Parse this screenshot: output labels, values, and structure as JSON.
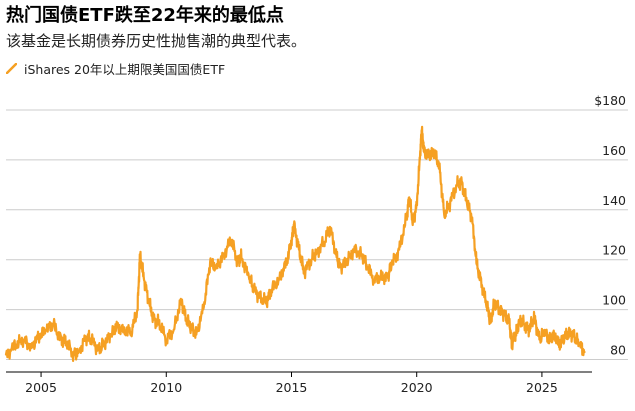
{
  "title": "热门国债ETF跌至22年来的最低点",
  "subtitle": "该基金是长期债券历史性抛售潮的典型代表。",
  "legend": {
    "label": "iShares 20年以上期限美国国债ETF"
  },
  "colors": {
    "line": "#f5a023",
    "grid": "#cccccc",
    "axis": "#000000",
    "text": "#222222"
  },
  "chart_data": {
    "type": "line",
    "title": "热门国债ETF跌至22年来的最低点",
    "subtitle": "该基金是长期债券历史性抛售潮的典型代表。",
    "series": [
      {
        "name": "iShares 20年以上期限美国国债ETF",
        "x": [
          2003.6,
          2004.0,
          2004.3,
          2004.6,
          2004.9,
          2005.2,
          2005.5,
          2005.8,
          2006.0,
          2006.3,
          2006.5,
          2006.8,
          2007.0,
          2007.3,
          2007.5,
          2007.8,
          2008.0,
          2008.3,
          2008.6,
          2008.85,
          2008.95,
          2009.1,
          2009.3,
          2009.5,
          2009.7,
          2010.0,
          2010.3,
          2010.6,
          2010.8,
          2011.0,
          2011.2,
          2011.5,
          2011.75,
          2012.0,
          2012.3,
          2012.6,
          2012.85,
          2013.0,
          2013.3,
          2013.5,
          2013.75,
          2014.0,
          2014.2,
          2014.5,
          2014.8,
          2015.0,
          2015.1,
          2015.3,
          2015.5,
          2015.8,
          2016.0,
          2016.3,
          2016.55,
          2016.8,
          2016.95,
          2017.2,
          2017.5,
          2017.8,
          2018.0,
          2018.3,
          2018.6,
          2018.85,
          2019.0,
          2019.3,
          2019.6,
          2019.7,
          2019.85,
          2020.0,
          2020.15,
          2020.2,
          2020.3,
          2020.5,
          2020.7,
          2020.9,
          2021.1,
          2021.3,
          2021.6,
          2021.8,
          2022.0,
          2022.2,
          2022.4,
          2022.6,
          2022.8,
          2022.95,
          2023.1,
          2023.3,
          2023.5,
          2023.7,
          2023.8,
          2023.95,
          2024.1,
          2024.3,
          2024.5,
          2024.7,
          2024.9,
          2025.1,
          2025.3,
          2025.5,
          2025.7,
          2025.9,
          2026.1,
          2026.3,
          2026.5,
          2026.7
        ],
        "values": [
          82,
          86,
          88,
          85,
          89,
          92,
          94,
          88,
          87,
          82,
          83,
          89,
          88,
          84,
          86,
          90,
          93,
          92,
          91,
          100,
          122,
          113,
          103,
          96,
          95,
          88,
          92,
          104,
          96,
          93,
          90,
          101,
          119,
          117,
          122,
          128,
          119,
          121,
          113,
          108,
          105,
          103,
          108,
          112,
          119,
          127,
          134,
          124,
          115,
          120,
          123,
          127,
          133,
          121,
          117,
          119,
          124,
          122,
          118,
          112,
          113,
          113,
          118,
          124,
          137,
          145,
          135,
          142,
          164,
          172,
          163,
          162,
          163,
          158,
          138,
          142,
          150,
          151,
          143,
          137,
          118,
          110,
          102,
          95,
          103,
          100,
          98,
          95,
          86,
          90,
          96,
          94,
          92,
          97,
          88,
          91,
          88,
          90,
          86,
          89,
          91,
          89,
          86,
          83
        ]
      }
    ],
    "x_ticks": [
      2005,
      2010,
      2015,
      2020,
      2025
    ],
    "x_tick_labels": [
      "2005",
      "2010",
      "2015",
      "2020",
      "2025"
    ],
    "xlim": [
      2003.6,
      2027.0
    ],
    "y_ticks": [
      80,
      100,
      120,
      140,
      160,
      180
    ],
    "y_tick_labels": [
      "80",
      "100",
      "120",
      "140",
      "160",
      "$180"
    ],
    "ylim": [
      75,
      180
    ],
    "grid": "horizontal",
    "y_axis_side": "right",
    "legend_position": "top-left"
  }
}
